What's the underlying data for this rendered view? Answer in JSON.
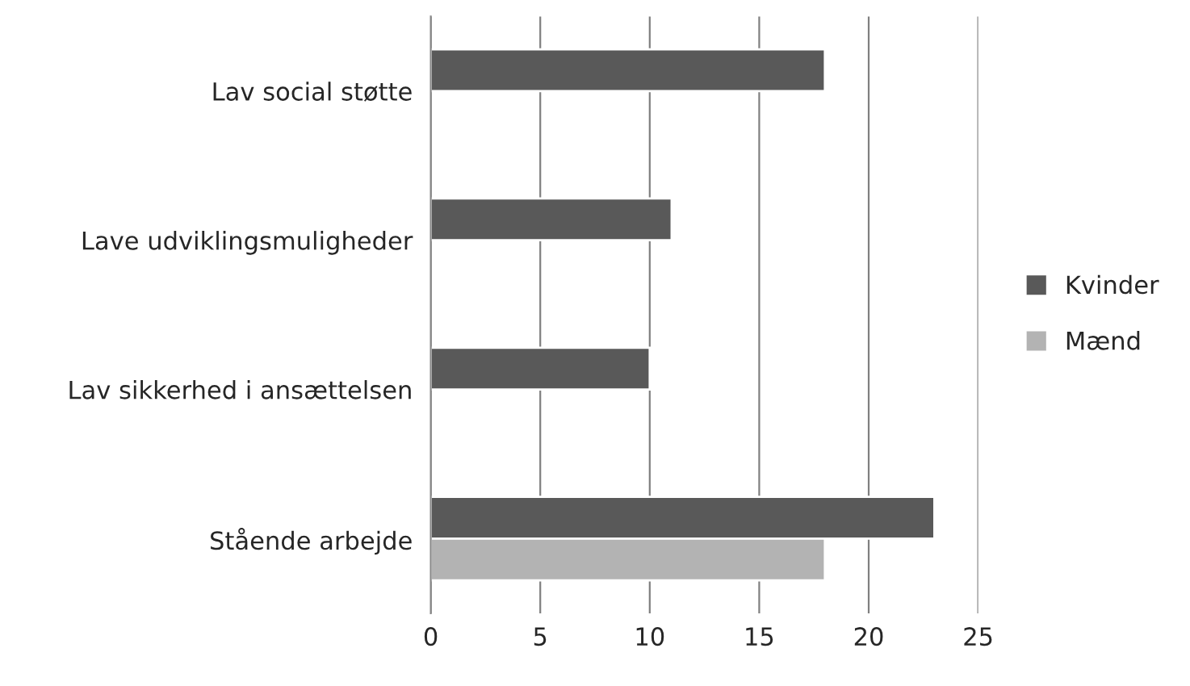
{
  "chart_data": {
    "type": "bar",
    "orientation": "horizontal",
    "categories": [
      "Lav social støtte",
      "Lave udviklingsmuligheder",
      "Lav sikkerhed i ansættelsen",
      "Stående arbejde"
    ],
    "series": [
      {
        "name": "Kvinder",
        "color": "#595959",
        "values": [
          18,
          11,
          10,
          23
        ]
      },
      {
        "name": "Mænd",
        "color": "#b3b3b3",
        "values": [
          null,
          null,
          null,
          18
        ]
      }
    ],
    "xlim": [
      0,
      25
    ],
    "xticks": [
      0,
      5,
      10,
      15,
      20,
      25
    ],
    "grid": "x",
    "legend": "right"
  }
}
